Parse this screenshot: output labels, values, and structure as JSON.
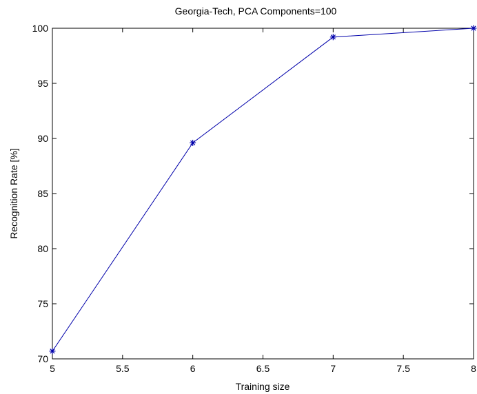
{
  "chart_data": {
    "type": "line",
    "title": "Georgia-Tech, PCA Components=100",
    "xlabel": "Training size",
    "ylabel": "Recognition Rate [%]",
    "xlim": [
      5,
      8
    ],
    "ylim": [
      70,
      100
    ],
    "x_ticks": [
      "5",
      "5.5",
      "6",
      "6.5",
      "7",
      "7.5",
      "8"
    ],
    "y_ticks": [
      "70",
      "75",
      "80",
      "85",
      "90",
      "95",
      "100"
    ],
    "grid": false,
    "marker": "asterisk",
    "series": [
      {
        "x": [
          5,
          6,
          7,
          8
        ],
        "y": [
          70.7,
          89.6,
          99.2,
          100
        ],
        "color": "#0000aa"
      }
    ]
  }
}
